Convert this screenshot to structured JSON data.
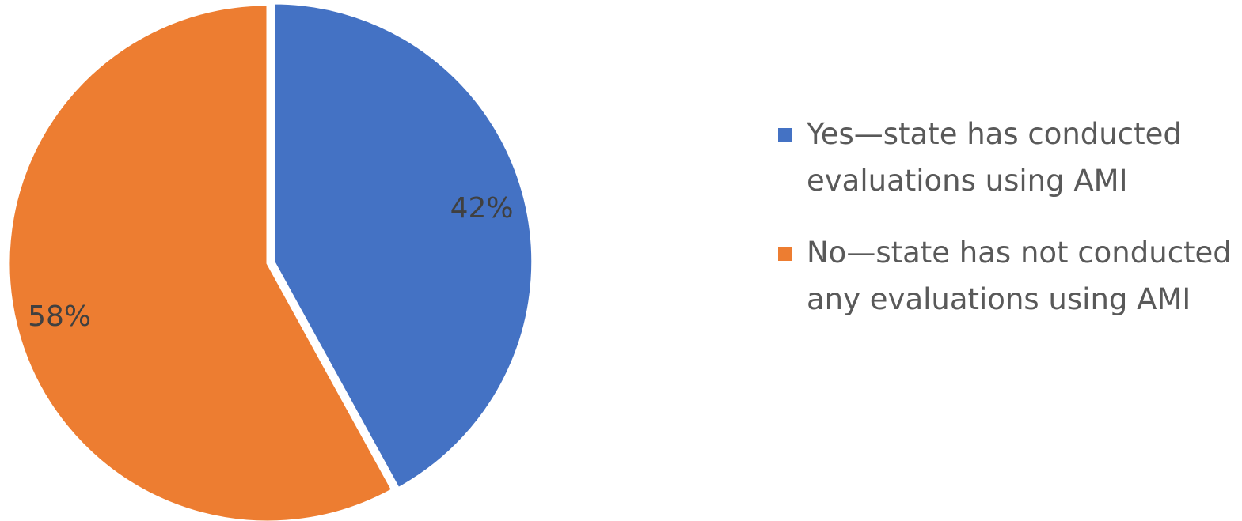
{
  "chart_data": {
    "type": "pie",
    "title": "",
    "slices": [
      {
        "label": "Yes—state has conducted evaluations using AMI",
        "value": 42,
        "display": "42%",
        "color": "#4472C4"
      },
      {
        "label": "No—state has not conducted any evaluations using AMI",
        "value": 58,
        "display": "58%",
        "color": "#ED7D31"
      }
    ],
    "start_angle_deg": 0,
    "direction": "clockwise",
    "exploded_slice": "Yes—state has conducted evaluations using AMI",
    "legend_position": "right"
  }
}
